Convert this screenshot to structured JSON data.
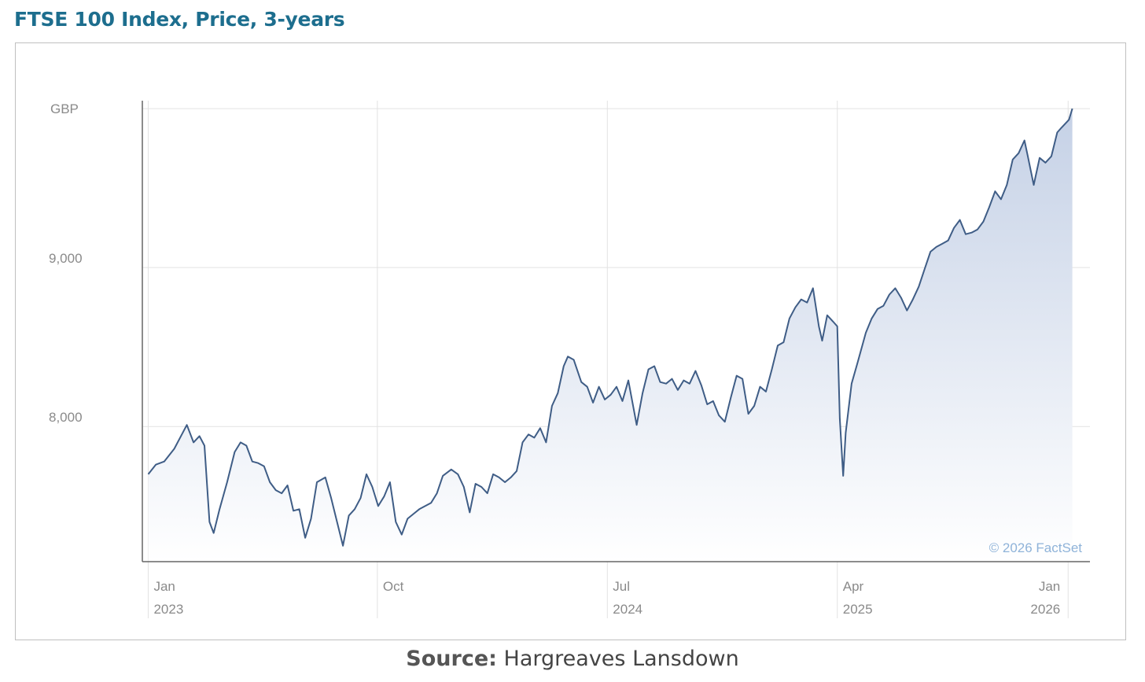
{
  "title": "FTSE 100 Index, Price, 3-years",
  "source": {
    "label": "Source:",
    "text": "Hargreaves Lansdown"
  },
  "chart_data": {
    "type": "area",
    "ylabel": "GBP",
    "credit": "© 2026 FactSet",
    "ylim": [
      7150,
      10050
    ],
    "y_ticks": [
      {
        "value": 9000,
        "label": "9,000"
      },
      {
        "value": 8000,
        "label": "8,000"
      }
    ],
    "x_ticks": [
      {
        "date": "2023-01-01",
        "label": "Jan",
        "sublabel": "2023"
      },
      {
        "date": "2023-10-01",
        "label": "Oct",
        "sublabel": ""
      },
      {
        "date": "2024-07-01",
        "label": "Jul",
        "sublabel": "2024"
      },
      {
        "date": "2025-04-01",
        "label": "Apr",
        "sublabel": "2025"
      },
      {
        "date": "2026-01-01",
        "label": "Jan",
        "sublabel": "2026"
      }
    ],
    "xlim": [
      "2022-12-25",
      "2026-01-27"
    ],
    "grid": true,
    "colors": {
      "line": "#3f5d86",
      "fill_top": "#c5d1e6",
      "fill_bottom": "#ffffff",
      "grid": "#e2e2e2",
      "axis": "#666666"
    },
    "series": [
      {
        "points": [
          [
            "2023-01-01",
            7700
          ],
          [
            "2023-01-10",
            7760
          ],
          [
            "2023-01-20",
            7780
          ],
          [
            "2023-02-01",
            7860
          ],
          [
            "2023-02-10",
            7950
          ],
          [
            "2023-02-16",
            8010
          ],
          [
            "2023-02-24",
            7900
          ],
          [
            "2023-03-03",
            7940
          ],
          [
            "2023-03-09",
            7880
          ],
          [
            "2023-03-15",
            7400
          ],
          [
            "2023-03-20",
            7330
          ],
          [
            "2023-03-27",
            7480
          ],
          [
            "2023-04-05",
            7650
          ],
          [
            "2023-04-14",
            7840
          ],
          [
            "2023-04-21",
            7900
          ],
          [
            "2023-04-28",
            7880
          ],
          [
            "2023-05-05",
            7780
          ],
          [
            "2023-05-12",
            7770
          ],
          [
            "2023-05-19",
            7750
          ],
          [
            "2023-05-26",
            7650
          ],
          [
            "2023-06-02",
            7600
          ],
          [
            "2023-06-09",
            7580
          ],
          [
            "2023-06-16",
            7630
          ],
          [
            "2023-06-23",
            7470
          ],
          [
            "2023-06-30",
            7480
          ],
          [
            "2023-07-07",
            7300
          ],
          [
            "2023-07-14",
            7420
          ],
          [
            "2023-07-21",
            7650
          ],
          [
            "2023-07-31",
            7680
          ],
          [
            "2023-08-07",
            7550
          ],
          [
            "2023-08-14",
            7400
          ],
          [
            "2023-08-21",
            7250
          ],
          [
            "2023-08-28",
            7440
          ],
          [
            "2023-09-04",
            7480
          ],
          [
            "2023-09-11",
            7550
          ],
          [
            "2023-09-18",
            7700
          ],
          [
            "2023-09-25",
            7620
          ],
          [
            "2023-10-02",
            7500
          ],
          [
            "2023-10-09",
            7560
          ],
          [
            "2023-10-16",
            7650
          ],
          [
            "2023-10-23",
            7400
          ],
          [
            "2023-10-30",
            7320
          ],
          [
            "2023-11-06",
            7420
          ],
          [
            "2023-11-13",
            7450
          ],
          [
            "2023-11-20",
            7480
          ],
          [
            "2023-11-27",
            7500
          ],
          [
            "2023-12-04",
            7520
          ],
          [
            "2023-12-11",
            7580
          ],
          [
            "2023-12-18",
            7690
          ],
          [
            "2023-12-28",
            7730
          ],
          [
            "2024-01-05",
            7700
          ],
          [
            "2024-01-12",
            7620
          ],
          [
            "2024-01-19",
            7460
          ],
          [
            "2024-01-26",
            7640
          ],
          [
            "2024-02-02",
            7620
          ],
          [
            "2024-02-09",
            7580
          ],
          [
            "2024-02-16",
            7700
          ],
          [
            "2024-02-23",
            7680
          ],
          [
            "2024-03-01",
            7650
          ],
          [
            "2024-03-08",
            7680
          ],
          [
            "2024-03-15",
            7720
          ],
          [
            "2024-03-22",
            7900
          ],
          [
            "2024-03-29",
            7950
          ],
          [
            "2024-04-05",
            7930
          ],
          [
            "2024-04-12",
            7990
          ],
          [
            "2024-04-19",
            7900
          ],
          [
            "2024-04-26",
            8130
          ],
          [
            "2024-05-03",
            8210
          ],
          [
            "2024-05-10",
            8380
          ],
          [
            "2024-05-15",
            8440
          ],
          [
            "2024-05-22",
            8420
          ],
          [
            "2024-05-31",
            8280
          ],
          [
            "2024-06-07",
            8250
          ],
          [
            "2024-06-14",
            8150
          ],
          [
            "2024-06-21",
            8250
          ],
          [
            "2024-06-28",
            8170
          ],
          [
            "2024-07-05",
            8200
          ],
          [
            "2024-07-12",
            8250
          ],
          [
            "2024-07-19",
            8160
          ],
          [
            "2024-07-26",
            8290
          ],
          [
            "2024-08-05",
            8010
          ],
          [
            "2024-08-12",
            8210
          ],
          [
            "2024-08-19",
            8360
          ],
          [
            "2024-08-26",
            8380
          ],
          [
            "2024-09-02",
            8280
          ],
          [
            "2024-09-09",
            8270
          ],
          [
            "2024-09-16",
            8300
          ],
          [
            "2024-09-23",
            8230
          ],
          [
            "2024-09-30",
            8290
          ],
          [
            "2024-10-07",
            8270
          ],
          [
            "2024-10-14",
            8350
          ],
          [
            "2024-10-21",
            8260
          ],
          [
            "2024-10-28",
            8140
          ],
          [
            "2024-11-04",
            8160
          ],
          [
            "2024-11-11",
            8070
          ],
          [
            "2024-11-18",
            8030
          ],
          [
            "2024-11-25",
            8180
          ],
          [
            "2024-12-02",
            8320
          ],
          [
            "2024-12-09",
            8300
          ],
          [
            "2024-12-16",
            8080
          ],
          [
            "2024-12-23",
            8130
          ],
          [
            "2024-12-30",
            8250
          ],
          [
            "2025-01-06",
            8220
          ],
          [
            "2025-01-13",
            8360
          ],
          [
            "2025-01-20",
            8510
          ],
          [
            "2025-01-27",
            8530
          ],
          [
            "2025-02-03",
            8680
          ],
          [
            "2025-02-10",
            8750
          ],
          [
            "2025-02-17",
            8800
          ],
          [
            "2025-02-24",
            8780
          ],
          [
            "2025-03-03",
            8870
          ],
          [
            "2025-03-10",
            8630
          ],
          [
            "2025-03-14",
            8540
          ],
          [
            "2025-03-20",
            8700
          ],
          [
            "2025-03-27",
            8660
          ],
          [
            "2025-04-01",
            8630
          ],
          [
            "2025-04-04",
            8050
          ],
          [
            "2025-04-08",
            7690
          ],
          [
            "2025-04-11",
            7960
          ],
          [
            "2025-04-18",
            8270
          ],
          [
            "2025-04-25",
            8400
          ],
          [
            "2025-05-05",
            8590
          ],
          [
            "2025-05-12",
            8680
          ],
          [
            "2025-05-19",
            8740
          ],
          [
            "2025-05-26",
            8760
          ],
          [
            "2025-06-02",
            8830
          ],
          [
            "2025-06-09",
            8870
          ],
          [
            "2025-06-16",
            8810
          ],
          [
            "2025-06-23",
            8730
          ],
          [
            "2025-06-30",
            8800
          ],
          [
            "2025-07-07",
            8880
          ],
          [
            "2025-07-14",
            8990
          ],
          [
            "2025-07-21",
            9100
          ],
          [
            "2025-07-28",
            9130
          ],
          [
            "2025-08-04",
            9150
          ],
          [
            "2025-08-11",
            9170
          ],
          [
            "2025-08-18",
            9250
          ],
          [
            "2025-08-25",
            9300
          ],
          [
            "2025-09-01",
            9210
          ],
          [
            "2025-09-08",
            9220
          ],
          [
            "2025-09-15",
            9240
          ],
          [
            "2025-09-22",
            9290
          ],
          [
            "2025-09-29",
            9380
          ],
          [
            "2025-10-06",
            9480
          ],
          [
            "2025-10-13",
            9430
          ],
          [
            "2025-10-20",
            9520
          ],
          [
            "2025-10-27",
            9680
          ],
          [
            "2025-11-03",
            9720
          ],
          [
            "2025-11-10",
            9800
          ],
          [
            "2025-11-14",
            9700
          ],
          [
            "2025-11-21",
            9520
          ],
          [
            "2025-11-28",
            9690
          ],
          [
            "2025-12-05",
            9660
          ],
          [
            "2025-12-12",
            9700
          ],
          [
            "2025-12-19",
            9850
          ],
          [
            "2025-12-24",
            9880
          ],
          [
            "2026-01-02",
            9930
          ],
          [
            "2026-01-06",
            10000
          ]
        ]
      }
    ]
  }
}
